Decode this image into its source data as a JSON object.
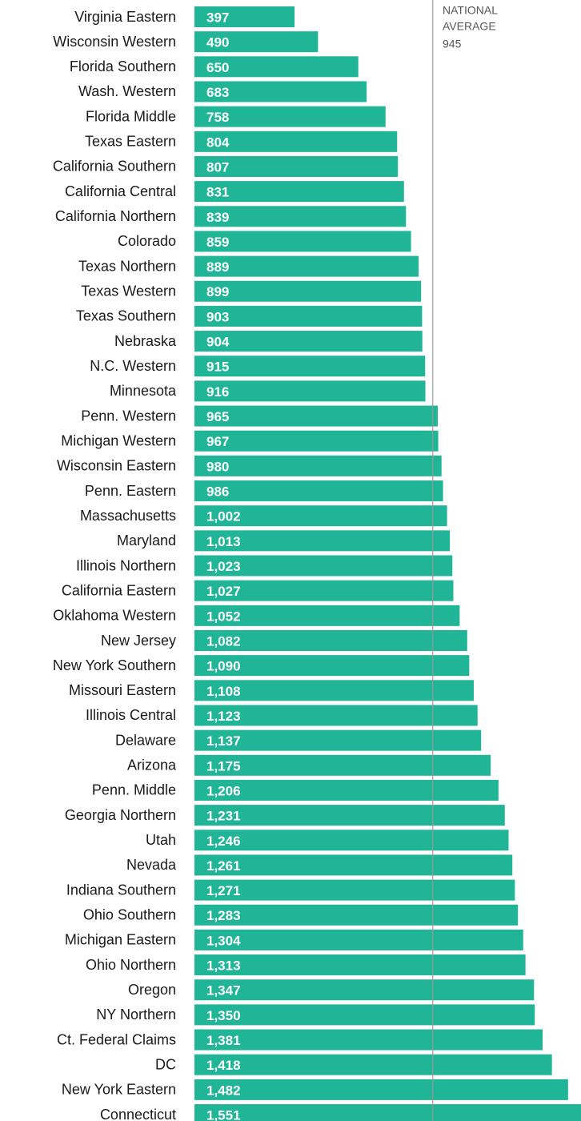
{
  "chart_data": {
    "type": "bar",
    "orientation": "horizontal",
    "color": "#20b596",
    "xlim": [
      0,
      1500
    ],
    "categories": [
      "Virginia Eastern",
      "Wisconsin Western",
      "Florida Southern",
      "Wash. Western",
      "Florida Middle",
      "Texas Eastern",
      "California Southern",
      "California Central",
      "California Northern",
      "Colorado",
      "Texas Northern",
      "Texas Western",
      "Texas Southern",
      "Nebraska",
      "N.C. Western",
      "Minnesota",
      "Penn. Western",
      "Michigan Western",
      "Wisconsin Eastern",
      "Penn. Eastern",
      "Massachusetts",
      "Maryland",
      "Illinois Northern",
      "California Eastern",
      "Oklahoma Western",
      "New Jersey",
      "New York Southern",
      "Missouri Eastern",
      "Illinois Central",
      "Delaware",
      "Arizona",
      "Penn. Middle",
      "Georgia Northern",
      "Utah",
      "Nevada",
      "Indiana Southern",
      "Ohio Southern",
      "Michigan Eastern",
      "Ohio Northern",
      "Oregon",
      "NY Northern",
      "Ct. Federal Claims",
      "DC",
      "New York Eastern",
      "Connecticut"
    ],
    "values": [
      397,
      490,
      650,
      683,
      758,
      804,
      807,
      831,
      839,
      859,
      889,
      899,
      903,
      904,
      915,
      916,
      965,
      967,
      980,
      986,
      1002,
      1013,
      1023,
      1027,
      1052,
      1082,
      1090,
      1108,
      1123,
      1137,
      1175,
      1206,
      1231,
      1246,
      1261,
      1271,
      1283,
      1304,
      1313,
      1347,
      1350,
      1381,
      1418,
      1482,
      1551
    ],
    "value_labels": [
      "397",
      "490",
      "650",
      "683",
      "758",
      "804",
      "807",
      "831",
      "839",
      "859",
      "889",
      "899",
      "903",
      "904",
      "915",
      "916",
      "965",
      "967",
      "980",
      "986",
      "1,002",
      "1,013",
      "1,023",
      "1,027",
      "1,052",
      "1,082",
      "1,090",
      "1,108",
      "1,123",
      "1,137",
      "1,175",
      "1,206",
      "1,231",
      "1,246",
      "1,261",
      "1,271",
      "1,283",
      "1,304",
      "1,313",
      "1,347",
      "1,350",
      "1,381",
      "1,418",
      "1,482",
      "1,551"
    ],
    "annotation": {
      "lines": [
        "NATIONAL",
        "AVERAGE"
      ],
      "value": 945
    }
  }
}
